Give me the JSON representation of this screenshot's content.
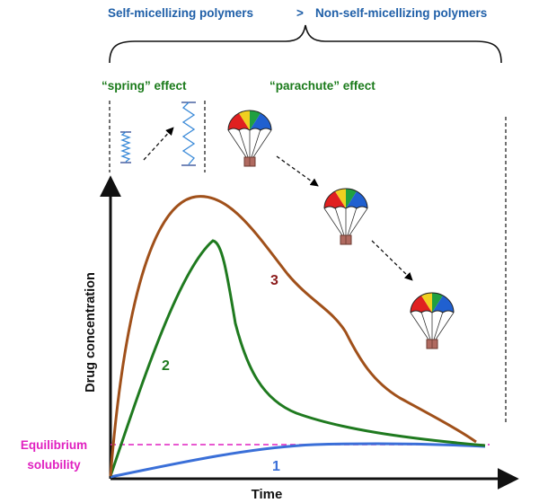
{
  "header": {
    "left": "Self-micellizing polymers",
    "operator": ">",
    "right": "Non-self-micellizing polymers"
  },
  "effects": {
    "spring": "“spring” effect",
    "parachute": "“parachute” effect"
  },
  "axes": {
    "y_label": "Drug concentration",
    "x_label": "Time"
  },
  "equilibrium": {
    "line1": "Equilibrium",
    "line2": "solubility"
  },
  "curve_labels": {
    "c1": "1",
    "c2": "2",
    "c3": "3"
  },
  "colors": {
    "header_blue": "#1f5fa8",
    "effect_green": "#1a7a1a",
    "curve1": "#3a6fd8",
    "curve2": "#1f7a1f",
    "curve3": "#a0501a",
    "label3": "#8b1a1a",
    "equilibrium": "#e020c0"
  },
  "icons": [
    "spring-compressed-icon",
    "spring-extended-icon",
    "parachute-icon"
  ]
}
